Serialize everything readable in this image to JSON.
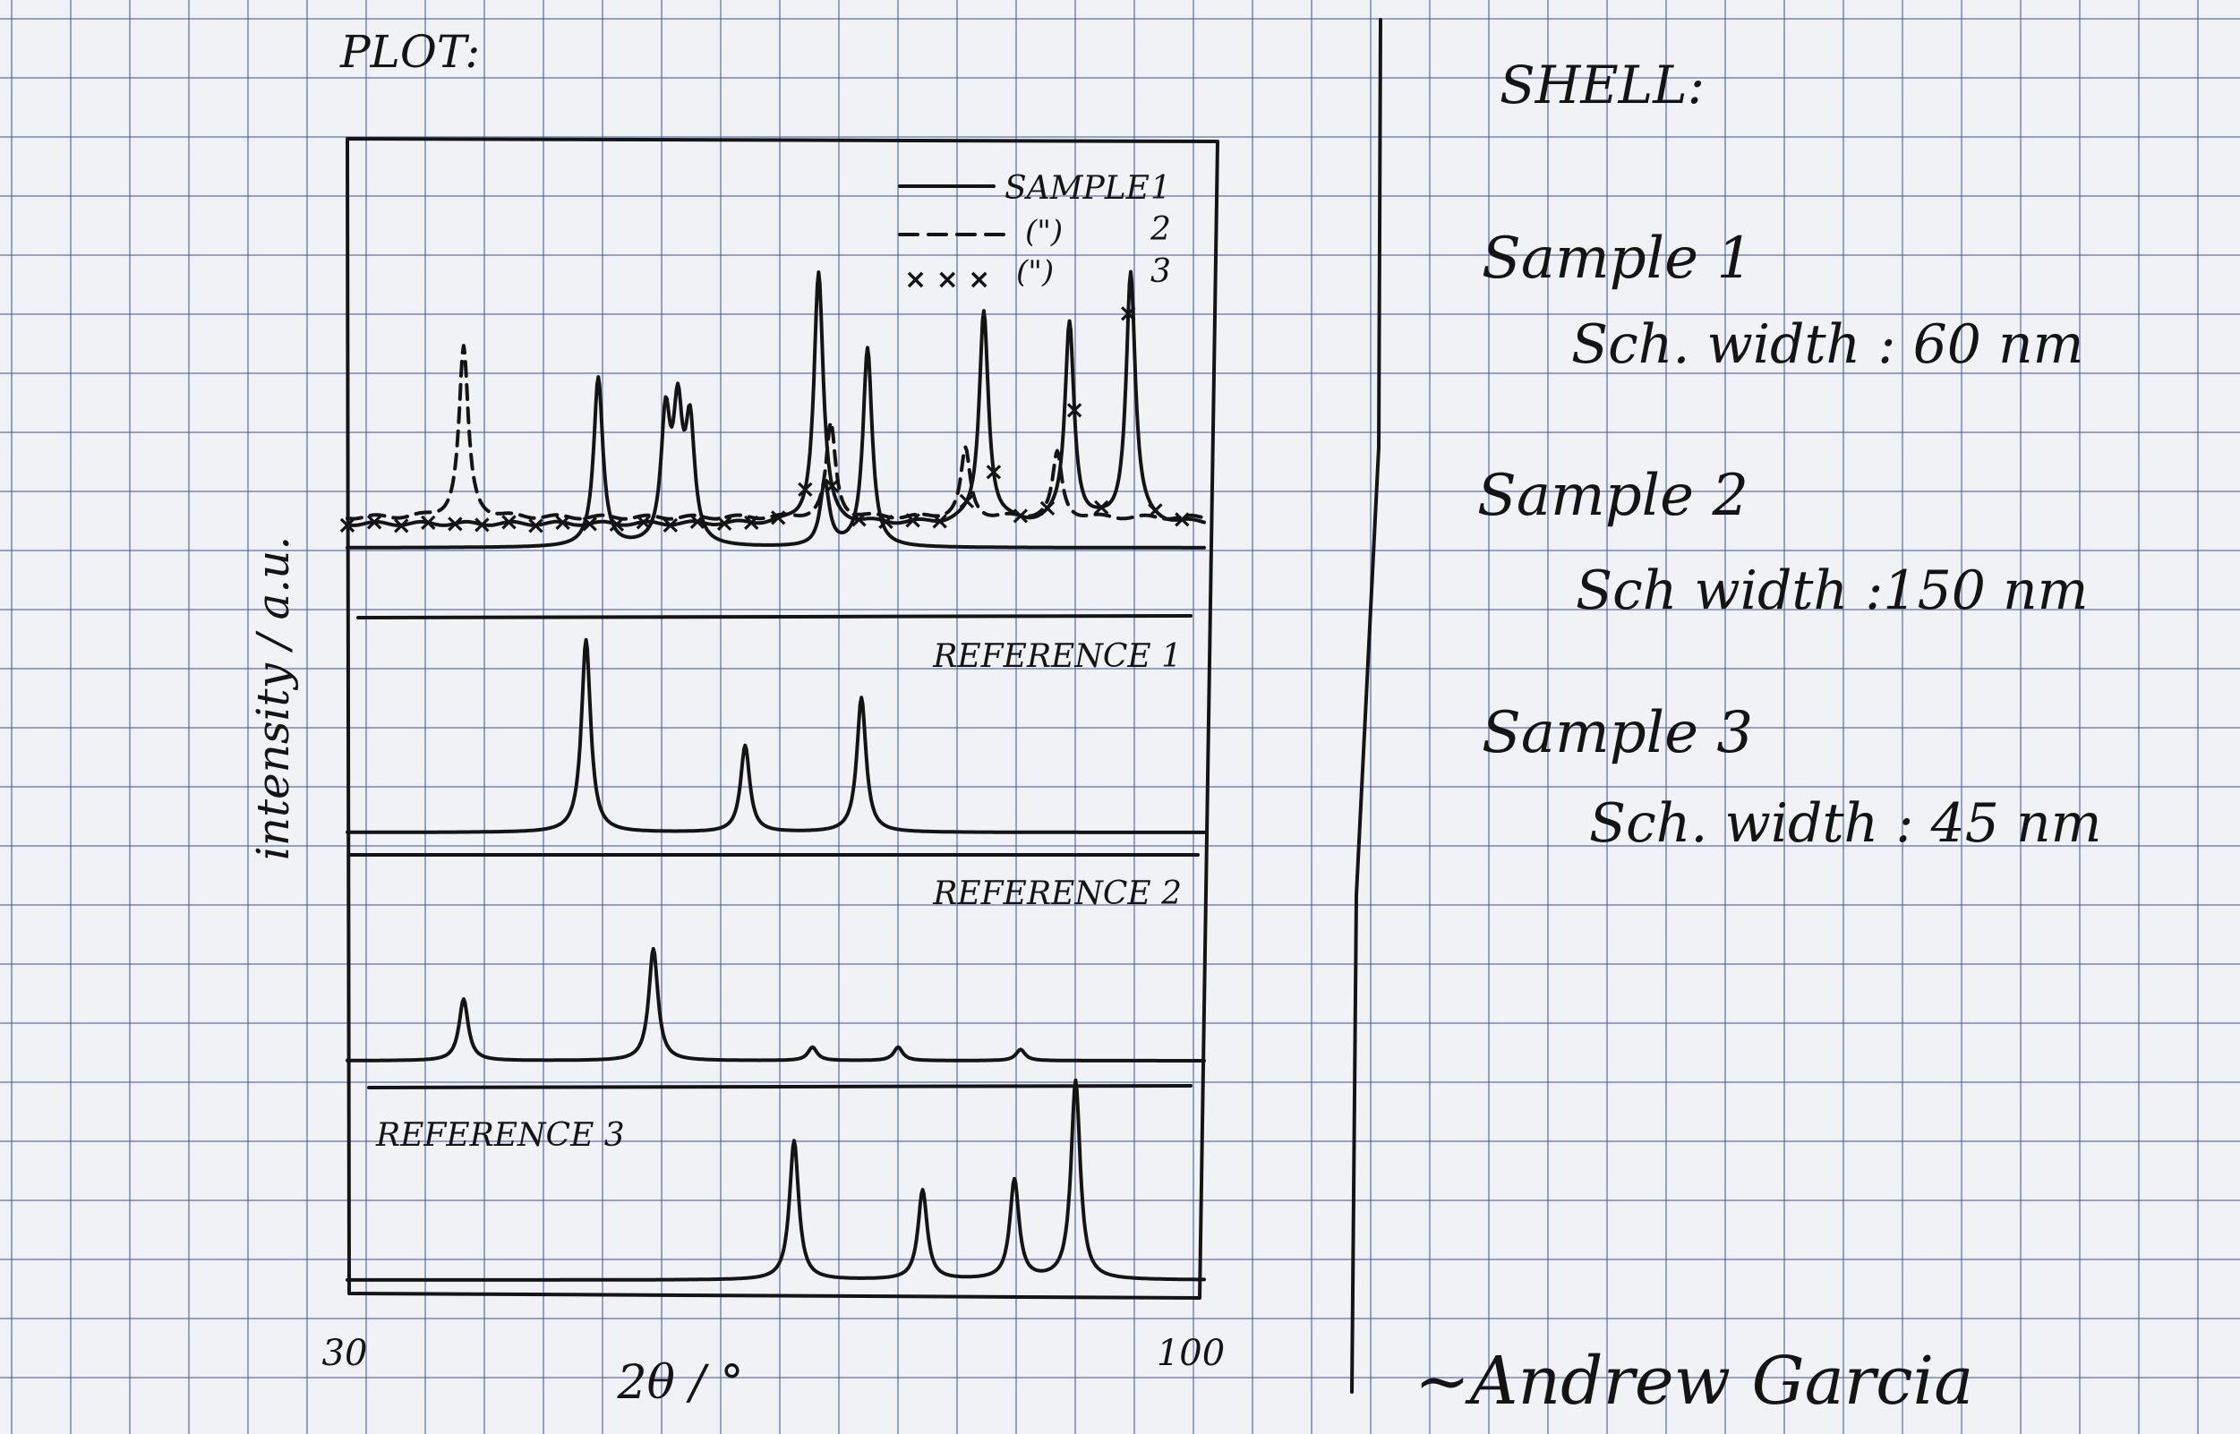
{
  "plot_heading": "PLOT:",
  "shell_heading": "SHELL:",
  "chart_data": {
    "type": "line",
    "ylabel": "intensity / a.u.",
    "xlabel": "2θ / °",
    "xlim": [
      30,
      100
    ],
    "x_tick_labels": [
      "30",
      "100"
    ],
    "grid": false,
    "panels": [
      {
        "legend_position": "top-right",
        "legend": [
          {
            "marker": "solid",
            "label": "SAMPLE",
            "number": "1"
          },
          {
            "marker": "dashed",
            "label": "(\")",
            "number": "2"
          },
          {
            "marker": "x",
            "label": "(\")",
            "number": "3"
          }
        ],
        "series": [
          {
            "name": "SAMPLE 1",
            "style": "solid",
            "peaks": [
              [
                50.5,
                0.85
              ],
              [
                56,
                0.62
              ],
              [
                57,
                0.62
              ],
              [
                58,
                0.58
              ],
              [
                69,
                0.32
              ],
              [
                72.5,
                1.0
              ]
            ]
          },
          {
            "name": "2",
            "style": "dashed",
            "peaks": [
              [
                39.5,
                1.0
              ],
              [
                69.5,
                0.55
              ],
              [
                80.5,
                0.4
              ],
              [
                88,
                0.38
              ]
            ]
          },
          {
            "name": "3",
            "style": "x",
            "peaks": [
              [
                68.5,
                1.0
              ],
              [
                82,
                0.85
              ],
              [
                89,
                0.8
              ],
              [
                94,
                1.0
              ]
            ]
          }
        ]
      },
      {
        "title": "REFERENCE 1",
        "series": [
          {
            "style": "solid",
            "peaks": [
              [
                49.5,
                1.0
              ],
              [
                62.5,
                0.45
              ],
              [
                72,
                0.7
              ]
            ]
          }
        ]
      },
      {
        "title": "REFERENCE 2",
        "series": [
          {
            "style": "solid",
            "peaks": [
              [
                39.5,
                0.55
              ],
              [
                55,
                1.0
              ],
              [
                68,
                0.12
              ],
              [
                75,
                0.12
              ],
              [
                85,
                0.1
              ]
            ]
          }
        ]
      },
      {
        "title": "REFERENCE 3",
        "series": [
          {
            "style": "solid",
            "peaks": [
              [
                66.5,
                0.7
              ],
              [
                77,
                0.45
              ],
              [
                84.5,
                0.5
              ],
              [
                89.5,
                1.0
              ]
            ]
          }
        ]
      }
    ]
  },
  "shell": [
    {
      "label": "Sample 1",
      "value": "Sch. width : 60 nm"
    },
    {
      "label": "Sample 2",
      "value": "Sch width :150 nm"
    },
    {
      "label": "Sample 3",
      "value": "Sch. width : 45 nm"
    }
  ],
  "signature": "~Andrew Garcia"
}
